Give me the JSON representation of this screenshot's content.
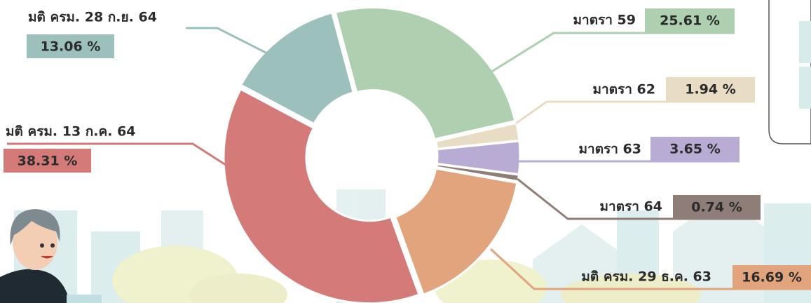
{
  "chart_data": {
    "type": "pie",
    "categories": [
      "มาตรา 59",
      "มาตรา 62",
      "มาตรา 63",
      "มาตรา 64",
      "มติ ครม. 29 ธ.ค. 63",
      "มติ ครม. 13 ก.ค. 64",
      "มติ ครม. 28 ก.ย. 64"
    ],
    "values": [
      25.61,
      1.94,
      3.65,
      0.74,
      16.69,
      38.31,
      13.06
    ],
    "value_labels": [
      "25.61 %",
      "1.94 %",
      "3.65 %",
      "0.74 %",
      "16.69 %",
      "38.31 %",
      "13.06 %"
    ],
    "colors": [
      "#aecfb0",
      "#e8dcc4",
      "#b9acd4",
      "#8f7e78",
      "#e2a47c",
      "#d47b7a",
      "#9cc0bc"
    ]
  }
}
